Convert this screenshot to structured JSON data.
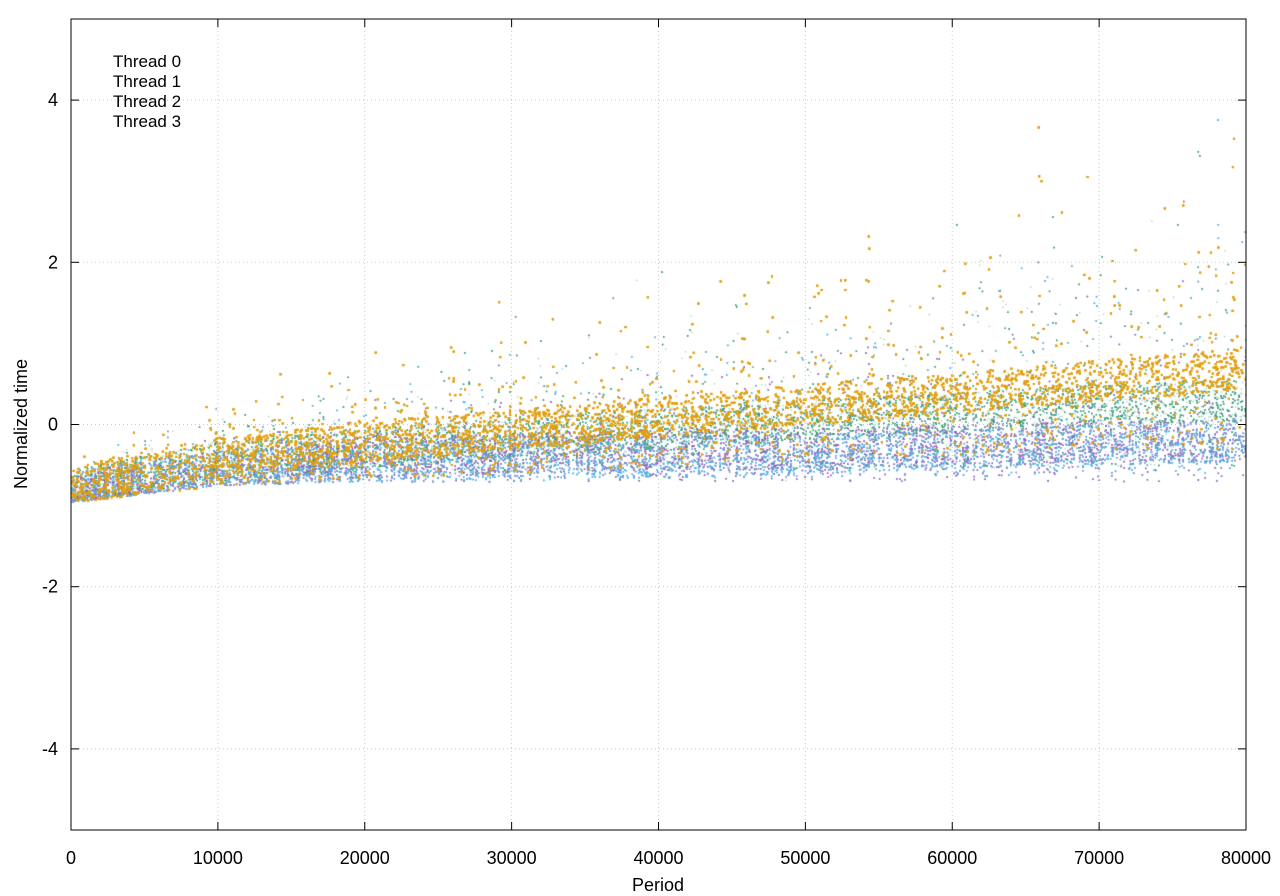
{
  "chart_data": {
    "type": "scatter",
    "title": "",
    "xlabel": "Period",
    "ylabel": "Normalized time",
    "xlim": [
      0,
      80000
    ],
    "ylim": [
      -5,
      5
    ],
    "x_ticks": [
      0,
      10000,
      20000,
      30000,
      40000,
      50000,
      60000,
      70000,
      80000
    ],
    "x_tick_labels": [
      "0",
      "10000",
      "20000",
      "30000",
      "40000",
      "50000",
      "60000",
      "70000",
      "80000"
    ],
    "y_ticks": [
      -4,
      -2,
      0,
      2,
      4
    ],
    "y_tick_labels": [
      "-4",
      "-2",
      "0",
      "2",
      "4"
    ],
    "grid": true,
    "legend_position": "top-left",
    "point_density_note_x": [
      0,
      10000,
      20000,
      30000,
      40000,
      50000,
      60000,
      70000,
      80000
    ],
    "series": [
      {
        "name": "Thread 0",
        "color": "#9467bd",
        "trend_x": [
          0,
          10000,
          20000,
          30000,
          40000,
          50000,
          60000,
          70000,
          80000
        ],
        "trend_median": [
          -0.85,
          -0.55,
          -0.4,
          -0.35,
          -0.3,
          -0.3,
          -0.25,
          -0.2,
          -0.2
        ],
        "trend_low": [
          -0.95,
          -0.75,
          -0.7,
          -0.7,
          -0.7,
          -0.7,
          -0.7,
          -0.7,
          -0.7
        ],
        "trend_high": [
          -0.6,
          -0.1,
          0.2,
          0.5,
          0.8,
          1.1,
          1.4,
          1.8,
          2.2
        ]
      },
      {
        "name": "Thread 1",
        "color": "#3a9e7a",
        "trend_x": [
          0,
          10000,
          20000,
          30000,
          40000,
          50000,
          60000,
          70000,
          80000
        ],
        "trend_median": [
          -0.8,
          -0.45,
          -0.3,
          -0.15,
          -0.05,
          0.05,
          0.15,
          0.25,
          0.3
        ],
        "trend_low": [
          -0.95,
          -0.7,
          -0.65,
          -0.6,
          -0.55,
          -0.55,
          -0.55,
          -0.5,
          -0.5
        ],
        "trend_high": [
          -0.5,
          0.2,
          0.6,
          1.0,
          1.4,
          1.8,
          2.2,
          2.6,
          3.0
        ]
      },
      {
        "name": "Thread 2",
        "color": "#56aee3",
        "trend_x": [
          0,
          10000,
          20000,
          30000,
          40000,
          50000,
          60000,
          70000,
          80000
        ],
        "trend_median": [
          -0.8,
          -0.55,
          -0.45,
          -0.4,
          -0.4,
          -0.35,
          -0.3,
          -0.25,
          -0.2
        ],
        "trend_low": [
          -0.95,
          -0.75,
          -0.7,
          -0.7,
          -0.65,
          -0.65,
          -0.65,
          -0.6,
          -0.6
        ],
        "trend_high": [
          -0.5,
          0.0,
          0.4,
          0.8,
          1.1,
          1.5,
          1.8,
          2.2,
          2.6
        ]
      },
      {
        "name": "Thread 3",
        "color": "#e0a112",
        "trend_x": [
          0,
          10000,
          20000,
          30000,
          40000,
          50000,
          60000,
          70000,
          80000
        ],
        "trend_median": [
          -0.75,
          -0.4,
          -0.2,
          -0.05,
          0.1,
          0.25,
          0.4,
          0.55,
          0.7
        ],
        "trend_low": [
          -0.95,
          -0.75,
          -0.65,
          -0.6,
          -0.5,
          -0.45,
          -0.4,
          -0.35,
          -0.3
        ],
        "trend_high": [
          -0.4,
          0.4,
          0.9,
          1.3,
          1.8,
          2.3,
          2.8,
          3.3,
          3.8
        ]
      }
    ]
  }
}
